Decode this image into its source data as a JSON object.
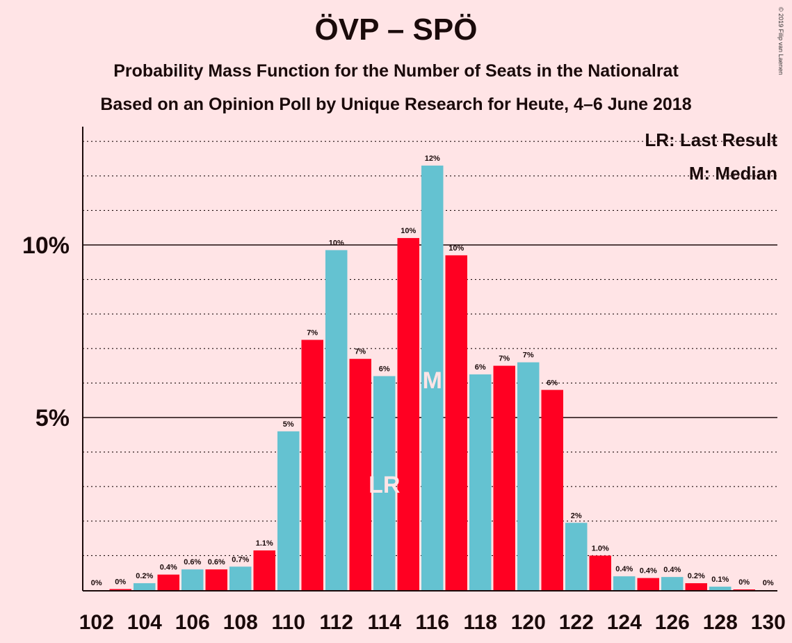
{
  "title": "ÖVP – SPÖ",
  "subtitle": "Probability Mass Function for the Number of Seats in the Nationalrat",
  "subtitle2": "Based on an Opinion Poll by Unique Research for Heute, 4–6 June 2018",
  "copyright": "© 2019 Filip van Laenen",
  "legend": {
    "last_result": "LR: Last Result",
    "median": "M: Median"
  },
  "colors": {
    "even": "#64C2D1",
    "odd": "#FF0022",
    "background": "#FFE4E6"
  },
  "chart_data": {
    "type": "bar",
    "x": [
      102,
      103,
      104,
      105,
      106,
      107,
      108,
      109,
      110,
      111,
      112,
      113,
      114,
      115,
      116,
      117,
      118,
      119,
      120,
      121,
      122,
      123,
      124,
      125,
      126,
      127,
      128,
      129,
      130
    ],
    "values": [
      0.0,
      0.03,
      0.2,
      0.45,
      0.6,
      0.6,
      0.68,
      1.15,
      4.6,
      7.25,
      9.85,
      6.7,
      6.2,
      10.2,
      12.3,
      9.7,
      6.25,
      6.5,
      6.6,
      5.8,
      1.95,
      1.0,
      0.4,
      0.35,
      0.38,
      0.2,
      0.1,
      0.02,
      0.0
    ],
    "labels": [
      "0%",
      "0%",
      "0.2%",
      "0.4%",
      "0.6%",
      "0.6%",
      "0.7%",
      "1.1%",
      "5%",
      "7%",
      "10%",
      "7%",
      "6%",
      "10%",
      "12%",
      "10%",
      "6%",
      "7%",
      "7%",
      "6%",
      "2%",
      "1.0%",
      "0.4%",
      "0.4%",
      "0.4%",
      "0.2%",
      "0.1%",
      "0%",
      "0%"
    ],
    "xticks": [
      102,
      104,
      106,
      108,
      110,
      112,
      114,
      116,
      118,
      120,
      122,
      124,
      126,
      128,
      130
    ],
    "yticks": [
      {
        "value": 5,
        "label": "5%"
      },
      {
        "value": 10,
        "label": "10%"
      }
    ],
    "ylim": [
      0,
      13.4
    ],
    "grid": "dotted every 1%",
    "last_result": {
      "x": 114,
      "label": "LR"
    },
    "median": {
      "x": 116,
      "label": "M"
    }
  }
}
